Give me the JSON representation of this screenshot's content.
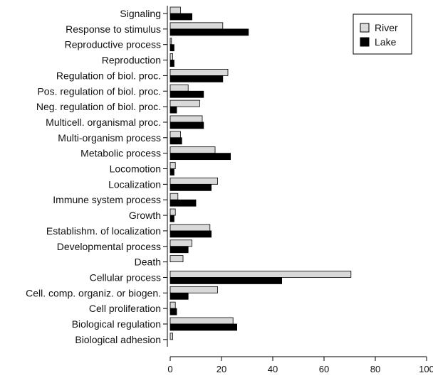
{
  "chart_data": {
    "type": "bar",
    "orientation": "horizontal",
    "categories": [
      "Signaling",
      "Response to stimulus",
      "Reproductive process",
      "Reproduction",
      "Regulation of biol. proc.",
      "Pos. regulation of biol. proc.",
      "Neg. regulation of biol. proc.",
      "Multicell. organismal proc.",
      "Multi-organism process",
      "Metabolic process",
      "Locomotion",
      "Localization",
      "Immune system process",
      "Growth",
      "Establishm. of localization",
      "Developmental process",
      "Death",
      "Cellular process",
      "Cell. comp. organiz. or biogen.",
      "Cell proliferation",
      "Biological regulation",
      "Biological adhesion"
    ],
    "series": [
      {
        "name": "River",
        "color": "#d9d9d9",
        "values": [
          4,
          20.5,
          0.5,
          1,
          22.5,
          7,
          11.5,
          12.5,
          4,
          17.5,
          2,
          18.5,
          3,
          2,
          15.5,
          8.5,
          5,
          70.5,
          18.5,
          2,
          24.5,
          1
        ]
      },
      {
        "name": "Lake",
        "color": "#000000",
        "values": [
          8.5,
          30.5,
          1.5,
          1.5,
          20.5,
          13,
          2.5,
          13,
          4.5,
          23.5,
          1.5,
          16,
          10,
          1.5,
          16,
          7,
          0,
          43.5,
          7,
          2.5,
          26,
          0
        ]
      }
    ],
    "xticks": [
      "0",
      "20",
      "40",
      "60",
      "80",
      "100"
    ],
    "xlim": [
      0,
      100
    ],
    "legend_position": "top-right",
    "grid": false
  }
}
